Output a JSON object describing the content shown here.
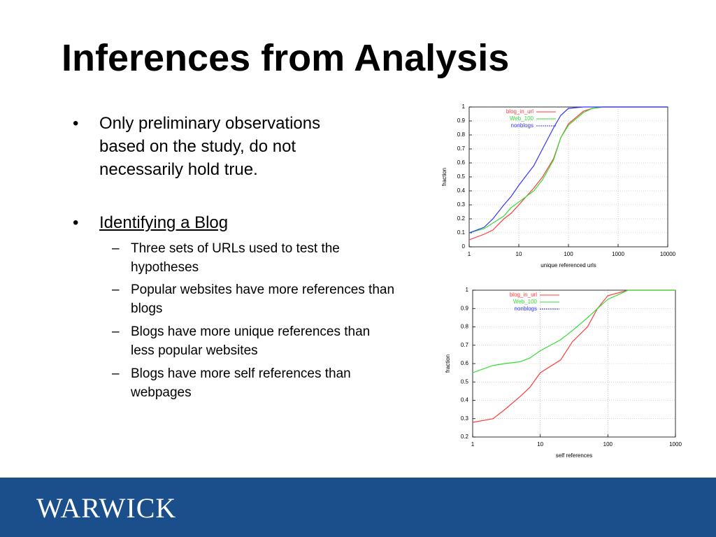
{
  "title": "Inferences from Analysis",
  "bullets": [
    {
      "text": "Only preliminary observations based on the study, do not necessarily hold true."
    },
    {
      "text": "Identifying a Blog",
      "sub": [
        "Three sets of URLs used to test the hypotheses",
        "Popular websites have more references than blogs",
        "Blogs have more unique references than less popular websites",
        "Blogs have more self references than webpages"
      ]
    }
  ],
  "chart_data": [
    {
      "type": "line",
      "xlabel": "unique referenced urls",
      "ylabel": "fraction",
      "log_x": true,
      "grid": true,
      "legend": "top",
      "xlim": [
        1,
        10000
      ],
      "xticks": [
        1,
        10,
        100,
        1000,
        10000
      ],
      "ylim": [
        0,
        1
      ],
      "yticks": [
        0,
        0.1,
        0.2,
        0.3,
        0.4,
        0.5,
        0.6,
        0.7,
        0.8,
        0.9,
        1
      ],
      "x": [
        1,
        2,
        3,
        5,
        7,
        10,
        20,
        30,
        50,
        70,
        100,
        200,
        300,
        500,
        1000,
        10000
      ],
      "series": [
        {
          "name": "blog_in_url",
          "color": "#ff3b3b",
          "values": [
            0.05,
            0.09,
            0.12,
            0.2,
            0.24,
            0.3,
            0.42,
            0.5,
            0.63,
            0.78,
            0.88,
            0.97,
            0.99,
            1,
            1,
            1
          ]
        },
        {
          "name": "Web_100",
          "color": "#33dd33",
          "values": [
            0.1,
            0.13,
            0.17,
            0.22,
            0.28,
            0.32,
            0.4,
            0.48,
            0.62,
            0.78,
            0.87,
            0.96,
            0.99,
            1,
            1,
            1
          ]
        },
        {
          "name": "nonblogs",
          "color": "#3333ff",
          "values": [
            0.1,
            0.14,
            0.2,
            0.3,
            0.36,
            0.44,
            0.58,
            0.7,
            0.85,
            0.94,
            0.99,
            1,
            1,
            1,
            1,
            1
          ]
        }
      ]
    },
    {
      "type": "line",
      "xlabel": "self references",
      "ylabel": "fraction",
      "log_x": true,
      "grid": true,
      "legend": "top",
      "xlim": [
        1,
        1000
      ],
      "xticks": [
        1,
        10,
        100,
        1000
      ],
      "ylim": [
        0.2,
        1
      ],
      "yticks": [
        0.2,
        0.3,
        0.4,
        0.5,
        0.6,
        0.7,
        0.8,
        0.9,
        1
      ],
      "x": [
        1,
        2,
        3,
        5,
        7,
        10,
        20,
        30,
        50,
        70,
        100,
        200,
        1000
      ],
      "series": [
        {
          "name": "blog_in_url",
          "color": "#ff3b3b",
          "values": [
            0.28,
            0.3,
            0.35,
            0.42,
            0.47,
            0.55,
            0.62,
            0.72,
            0.8,
            0.9,
            0.97,
            1,
            1
          ]
        },
        {
          "name": "Web_100",
          "color": "#33dd33",
          "values": [
            0.55,
            0.59,
            0.6,
            0.61,
            0.63,
            0.67,
            0.73,
            0.78,
            0.85,
            0.9,
            0.95,
            1,
            1
          ]
        },
        {
          "name": "nonblogs",
          "color": "#3333ff",
          "values": [
            null,
            null,
            null,
            null,
            null,
            null,
            null,
            null,
            null,
            null,
            null,
            null,
            null
          ]
        }
      ]
    }
  ],
  "footer": {
    "logo": "WARWICK"
  }
}
